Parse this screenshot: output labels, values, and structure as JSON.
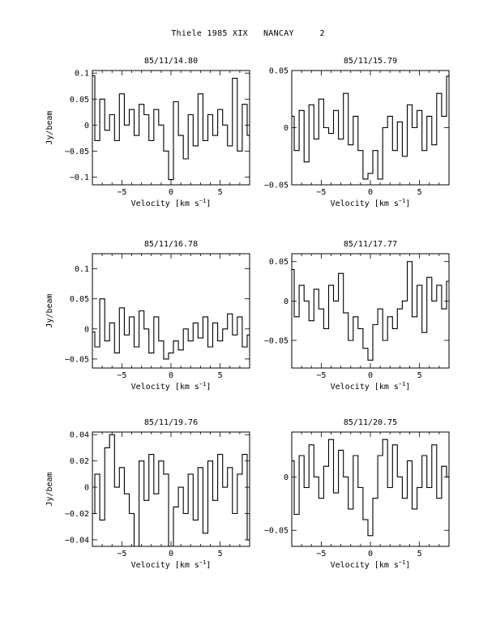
{
  "page_title": "Thiele 1985 XIX   NANCAY     2",
  "chart_data": [
    {
      "type": "line",
      "title": "85/11/14.80",
      "xlabel": "Velocity [km s^-1]",
      "ylabel": "Jy/beam",
      "xlim": [
        -8,
        8
      ],
      "ylim": [
        -0.115,
        0.105
      ],
      "xticks": [
        -5,
        0,
        5
      ],
      "yticks": [
        -0.1,
        -0.05,
        0,
        0.05,
        0.1
      ],
      "ytick_labels": [
        "−0.1",
        "−0.05",
        "0",
        "0.05",
        "0.1"
      ],
      "series": [
        {
          "x": [
            -8,
            -7.5,
            -7,
            -6.5,
            -6,
            -5.5,
            -5,
            -4.5,
            -4,
            -3.5,
            -3,
            -2.5,
            -2,
            -1.5,
            -1,
            -0.5,
            0,
            0.5,
            1,
            1.5,
            2,
            2.5,
            3,
            3.5,
            4,
            4.5,
            5,
            5.5,
            6,
            6.5,
            7,
            7.5,
            8
          ],
          "values": [
            0.095,
            -0.03,
            0.05,
            -0.01,
            0.02,
            -0.03,
            0.06,
            0.0,
            0.03,
            -0.02,
            0.04,
            0.02,
            -0.03,
            0.03,
            0.0,
            -0.05,
            -0.105,
            0.045,
            -0.02,
            -0.065,
            0.02,
            -0.04,
            0.06,
            -0.03,
            0.02,
            -0.02,
            0.03,
            0.0,
            -0.04,
            0.09,
            -0.05,
            0.04,
            -0.02
          ]
        }
      ]
    },
    {
      "type": "line",
      "title": "85/11/15.79",
      "xlabel": "Velocity [km s^-1]",
      "ylabel": "",
      "xlim": [
        -8,
        8
      ],
      "ylim": [
        -0.05,
        0.05
      ],
      "xticks": [
        -5,
        0,
        5
      ],
      "yticks": [
        -0.05,
        0,
        0.05
      ],
      "ytick_labels": [
        "−0.05",
        "0",
        "0.05"
      ],
      "series": [
        {
          "x": [
            -8,
            -7.5,
            -7,
            -6.5,
            -6,
            -5.5,
            -5,
            -4.5,
            -4,
            -3.5,
            -3,
            -2.5,
            -2,
            -1.5,
            -1,
            -0.5,
            0,
            0.5,
            1,
            1.5,
            2,
            2.5,
            3,
            3.5,
            4,
            4.5,
            5,
            5.5,
            6,
            6.5,
            7,
            7.5,
            8
          ],
          "values": [
            0.01,
            -0.02,
            0.015,
            -0.03,
            0.02,
            -0.01,
            0.025,
            0.0,
            -0.005,
            0.015,
            -0.01,
            0.03,
            -0.015,
            0.01,
            -0.02,
            -0.045,
            -0.04,
            -0.02,
            -0.045,
            0.0,
            0.01,
            -0.02,
            0.005,
            -0.025,
            0.02,
            0.0,
            0.015,
            -0.02,
            0.01,
            -0.015,
            0.03,
            0.01,
            0.045
          ]
        }
      ]
    },
    {
      "type": "line",
      "title": "85/11/16.78",
      "xlabel": "Velocity [km s^-1]",
      "ylabel": "Jy/beam",
      "xlim": [
        -8,
        8
      ],
      "ylim": [
        -0.065,
        0.125
      ],
      "xticks": [
        -5,
        0,
        5
      ],
      "yticks": [
        -0.05,
        0,
        0.05,
        0.1
      ],
      "ytick_labels": [
        "−0.05",
        "0",
        "0.05",
        "0.1"
      ],
      "series": [
        {
          "x": [
            -8,
            -7.5,
            -7,
            -6.5,
            -6,
            -5.5,
            -5,
            -4.5,
            -4,
            -3.5,
            -3,
            -2.5,
            -2,
            -1.5,
            -1,
            -0.5,
            0,
            0.5,
            1,
            1.5,
            2,
            2.5,
            3,
            3.5,
            4,
            4.5,
            5,
            5.5,
            6,
            6.5,
            7,
            7.5,
            8
          ],
          "values": [
            -0.005,
            -0.03,
            0.05,
            -0.02,
            0.01,
            -0.04,
            0.035,
            -0.01,
            0.02,
            -0.03,
            0.03,
            0.0,
            -0.04,
            0.02,
            -0.02,
            -0.05,
            -0.04,
            -0.02,
            -0.035,
            0.0,
            -0.02,
            0.01,
            -0.015,
            0.02,
            -0.03,
            0.01,
            -0.02,
            0.0,
            0.025,
            -0.01,
            0.02,
            -0.03,
            -0.01
          ]
        }
      ]
    },
    {
      "type": "line",
      "title": "85/11/17.77",
      "xlabel": "Velocity [km s^-1]",
      "ylabel": "",
      "xlim": [
        -8,
        8
      ],
      "ylim": [
        -0.085,
        0.06
      ],
      "xticks": [
        -5,
        0,
        5
      ],
      "yticks": [
        -0.05,
        0,
        0.05
      ],
      "ytick_labels": [
        "−0.05",
        "0",
        "0.05"
      ],
      "series": [
        {
          "x": [
            -8,
            -7.5,
            -7,
            -6.5,
            -6,
            -5.5,
            -5,
            -4.5,
            -4,
            -3.5,
            -3,
            -2.5,
            -2,
            -1.5,
            -1,
            -0.5,
            0,
            0.5,
            1,
            1.5,
            2,
            2.5,
            3,
            3.5,
            4,
            4.5,
            5,
            5.5,
            6,
            6.5,
            7,
            7.5,
            8
          ],
          "values": [
            0.04,
            -0.02,
            0.02,
            0.0,
            -0.025,
            0.015,
            -0.01,
            -0.035,
            0.02,
            0.0,
            0.035,
            -0.015,
            -0.05,
            -0.02,
            -0.035,
            -0.06,
            -0.075,
            -0.03,
            -0.01,
            -0.05,
            -0.02,
            -0.035,
            -0.01,
            0.0,
            0.05,
            -0.02,
            0.02,
            -0.04,
            0.03,
            0.0,
            0.02,
            -0.01,
            0.025
          ]
        }
      ]
    },
    {
      "type": "line",
      "title": "85/11/19.76",
      "xlabel": "Velocity [km s^-1]",
      "ylabel": "Jy/beam",
      "xlim": [
        -8,
        8
      ],
      "ylim": [
        -0.045,
        0.042
      ],
      "xticks": [
        -5,
        0,
        5
      ],
      "yticks": [
        -0.04,
        -0.02,
        0,
        0.02,
        0.04
      ],
      "ytick_labels": [
        "−0.04",
        "−0.02",
        "0",
        "0.02",
        "0.04"
      ],
      "series": [
        {
          "x": [
            -8,
            -7.5,
            -7,
            -6.5,
            -6,
            -5.5,
            -5,
            -4.5,
            -4,
            -3.5,
            -3,
            -2.5,
            -2,
            -1.5,
            -1,
            -0.5,
            0,
            0.5,
            1,
            1.5,
            2,
            2.5,
            3,
            3.5,
            4,
            4.5,
            5,
            5.5,
            6,
            6.5,
            7,
            7.5,
            8
          ],
          "values": [
            -0.02,
            0.01,
            -0.025,
            0.03,
            0.04,
            0.0,
            0.015,
            -0.005,
            -0.02,
            -0.045,
            0.02,
            -0.01,
            0.025,
            -0.005,
            0.02,
            0.01,
            -0.045,
            -0.015,
            0.0,
            -0.02,
            0.01,
            -0.025,
            0.015,
            -0.035,
            0.02,
            -0.01,
            0.025,
            0.0,
            0.015,
            -0.02,
            0.01,
            0.025,
            -0.04
          ]
        }
      ]
    },
    {
      "type": "line",
      "title": "85/11/20.75",
      "xlabel": "Velocity [km s^-1]",
      "ylabel": "",
      "xlim": [
        -8,
        8
      ],
      "ylim": [
        -0.065,
        0.042
      ],
      "xticks": [
        -5,
        0,
        5
      ],
      "yticks": [
        -0.05,
        0
      ],
      "ytick_labels": [
        "−0.05",
        "0"
      ],
      "series": [
        {
          "x": [
            -8,
            -7.5,
            -7,
            -6.5,
            -6,
            -5.5,
            -5,
            -4.5,
            -4,
            -3.5,
            -3,
            -2.5,
            -2,
            -1.5,
            -1,
            -0.5,
            0,
            0.5,
            1,
            1.5,
            2,
            2.5,
            3,
            3.5,
            4,
            4.5,
            5,
            5.5,
            6,
            6.5,
            7,
            7.5,
            8
          ],
          "values": [
            0.015,
            -0.035,
            0.02,
            -0.01,
            0.03,
            0.0,
            -0.02,
            0.01,
            0.035,
            -0.015,
            0.025,
            0.0,
            -0.03,
            0.02,
            -0.01,
            -0.04,
            -0.055,
            -0.02,
            0.02,
            0.035,
            -0.01,
            0.03,
            0.0,
            -0.02,
            0.015,
            -0.03,
            -0.01,
            0.02,
            -0.01,
            0.03,
            -0.02,
            0.01,
            0.0
          ]
        }
      ]
    }
  ]
}
